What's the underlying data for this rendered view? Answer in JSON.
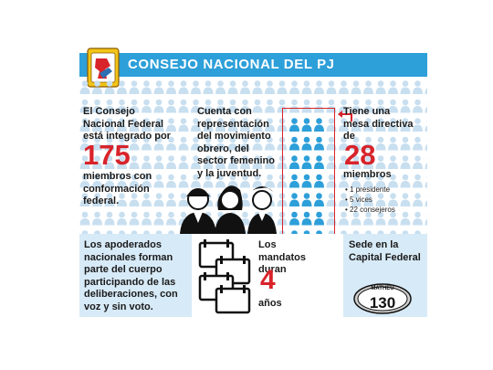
{
  "header": {
    "title": "CONSEJO NACIONAL DEL PJ"
  },
  "col1": {
    "text": "El Consejo Nacional Federal está integrado por",
    "number": "175",
    "text2": "miembros con conformación federal."
  },
  "col2": {
    "text": "Cuenta con representación del movimiento obrero, del sector femenino y la juventud."
  },
  "col3": {
    "text": "Tiene una mesa directiva de",
    "number": "28",
    "text2": "miembros",
    "list": [
      "• 1 presidente",
      "• 5 vices",
      "• 22 consejeros"
    ]
  },
  "bottom1": {
    "text": "Los apoderados nacionales forman parte del cuerpo participando de las deliberaciones, con voz y sin voto."
  },
  "bottom2": {
    "text": "Los mandatos duran",
    "number": "4",
    "unit": "años"
  },
  "bottom3": {
    "text": "Sede en la Capital Federal",
    "badge_top": "MATHEU",
    "badge_number": "130"
  },
  "colors": {
    "accent": "#2d9fd9",
    "red": "#d8232a",
    "person_light": "#c8dff0",
    "person_dark": "#2d9fd9",
    "panel": "#d7eaf7"
  }
}
